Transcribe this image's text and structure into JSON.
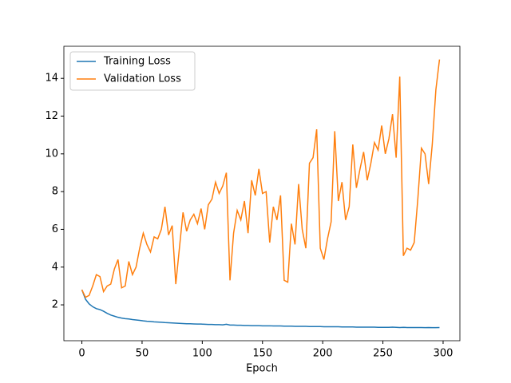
{
  "chart_data": {
    "type": "line",
    "xlabel": "Epoch",
    "x": [
      0,
      3,
      6,
      9,
      12,
      15,
      18,
      21,
      24,
      27,
      30,
      33,
      36,
      39,
      42,
      45,
      48,
      51,
      54,
      57,
      60,
      63,
      66,
      69,
      72,
      75,
      78,
      81,
      84,
      87,
      90,
      93,
      96,
      99,
      102,
      105,
      108,
      111,
      114,
      117,
      120,
      123,
      126,
      129,
      132,
      135,
      138,
      141,
      144,
      147,
      150,
      153,
      156,
      159,
      162,
      165,
      168,
      171,
      174,
      177,
      180,
      183,
      186,
      189,
      192,
      195,
      198,
      201,
      204,
      207,
      210,
      213,
      216,
      219,
      222,
      225,
      228,
      231,
      234,
      237,
      240,
      243,
      246,
      249,
      252,
      255,
      258,
      261,
      264,
      267,
      270,
      273,
      276,
      279,
      282,
      285,
      288,
      291,
      294,
      297
    ],
    "series": [
      {
        "name": "Training Loss",
        "color": "#1f77b4",
        "values": [
          2.8,
          2.3,
          2.05,
          1.9,
          1.8,
          1.75,
          1.66,
          1.55,
          1.46,
          1.4,
          1.34,
          1.3,
          1.27,
          1.25,
          1.22,
          1.2,
          1.18,
          1.15,
          1.13,
          1.12,
          1.1,
          1.09,
          1.08,
          1.06,
          1.05,
          1.04,
          1.03,
          1.02,
          1.01,
          1.0,
          1.0,
          0.99,
          0.98,
          0.98,
          0.97,
          0.96,
          0.96,
          0.95,
          0.95,
          0.94,
          0.97,
          0.93,
          0.93,
          0.92,
          0.92,
          0.91,
          0.91,
          0.9,
          0.9,
          0.9,
          0.89,
          0.89,
          0.89,
          0.88,
          0.88,
          0.88,
          0.87,
          0.87,
          0.87,
          0.86,
          0.86,
          0.86,
          0.86,
          0.85,
          0.85,
          0.85,
          0.85,
          0.84,
          0.84,
          0.84,
          0.84,
          0.84,
          0.83,
          0.83,
          0.83,
          0.83,
          0.82,
          0.82,
          0.82,
          0.82,
          0.82,
          0.82,
          0.81,
          0.81,
          0.81,
          0.81,
          0.82,
          0.81,
          0.8,
          0.81,
          0.8,
          0.8,
          0.8,
          0.8,
          0.8,
          0.79,
          0.8,
          0.79,
          0.79,
          0.8
        ]
      },
      {
        "name": "Validation Loss",
        "color": "#ff7f0e",
        "values": [
          2.8,
          2.4,
          2.5,
          3.0,
          3.6,
          3.5,
          2.7,
          3.0,
          3.1,
          3.9,
          4.4,
          2.9,
          3.0,
          4.3,
          3.6,
          4.0,
          5.0,
          5.8,
          5.2,
          4.8,
          5.6,
          5.5,
          6.0,
          7.2,
          5.7,
          6.2,
          3.1,
          5.0,
          6.9,
          5.9,
          6.5,
          6.8,
          6.3,
          7.1,
          6.0,
          7.3,
          7.6,
          8.5,
          7.9,
          8.3,
          9.0,
          3.3,
          5.8,
          7.0,
          6.5,
          7.5,
          5.8,
          8.6,
          7.8,
          9.2,
          7.9,
          8.0,
          5.3,
          7.2,
          6.5,
          7.8,
          3.3,
          3.2,
          6.3,
          5.2,
          8.4,
          6.0,
          5.0,
          9.5,
          9.8,
          11.3,
          5.0,
          4.4,
          5.5,
          6.4,
          11.2,
          7.5,
          8.5,
          6.5,
          7.2,
          10.5,
          8.2,
          9.2,
          10.1,
          8.6,
          9.5,
          10.6,
          10.2,
          11.5,
          10.0,
          10.8,
          12.1,
          9.8,
          14.1,
          4.6,
          5.0,
          4.9,
          5.3,
          7.6,
          10.3,
          10.0,
          8.4,
          10.5,
          13.4,
          15.0
        ]
      }
    ],
    "xlim": [
      -14.95,
      313.95
    ],
    "xticks": [
      0,
      50,
      100,
      150,
      200,
      250,
      300
    ],
    "ylim": [
      0.1,
      15.7
    ],
    "yticks": [
      2,
      4,
      6,
      8,
      10,
      12,
      14
    ],
    "legend": "upper left"
  }
}
